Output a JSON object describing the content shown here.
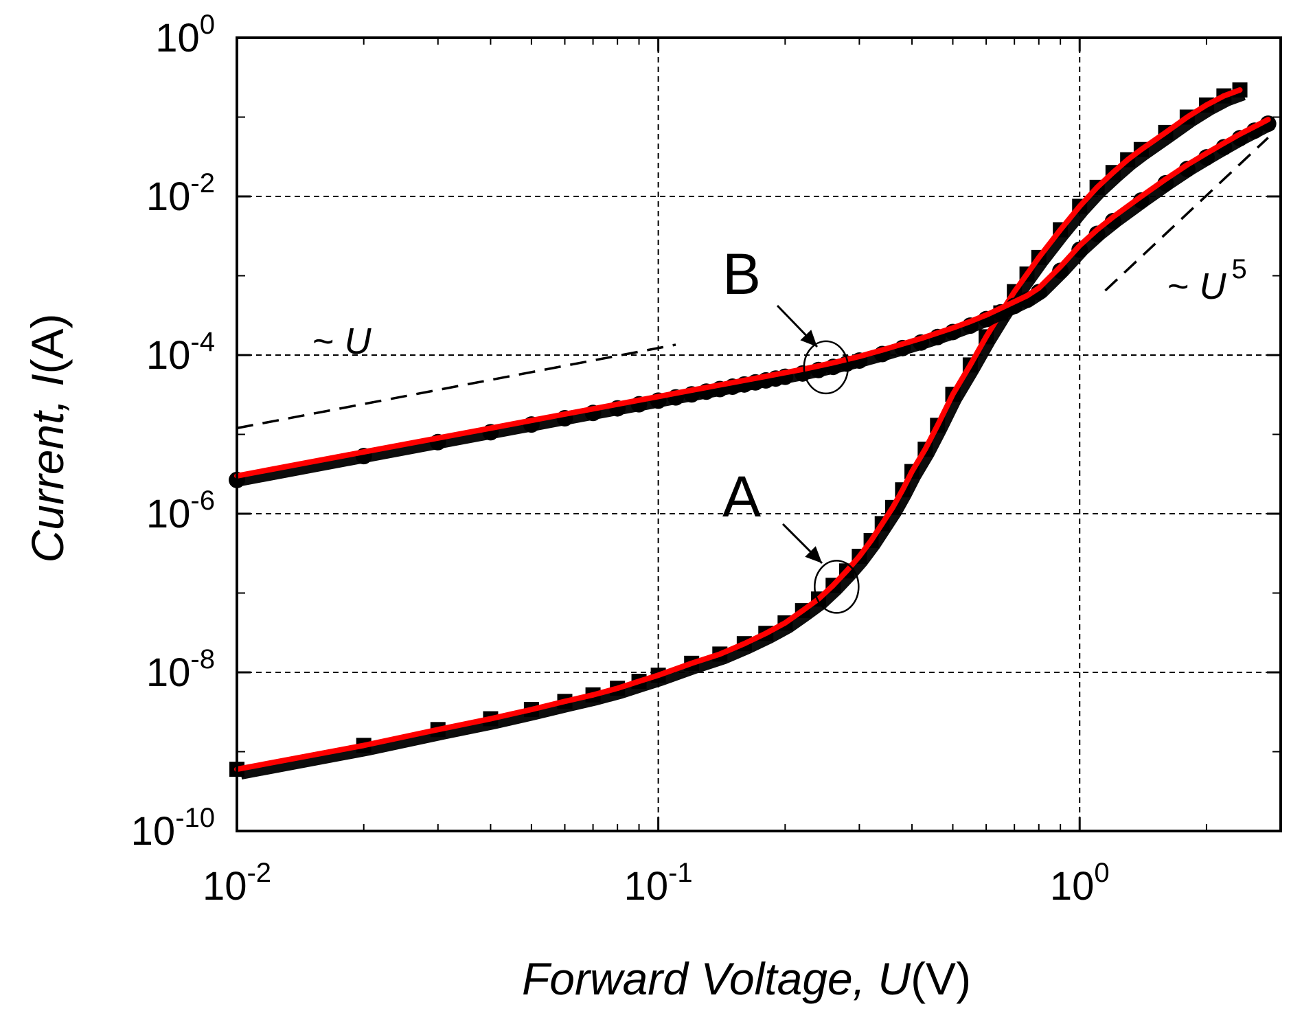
{
  "chart_data": {
    "type": "scatter",
    "title": "",
    "xlabel": {
      "prefix": "Forward Voltage, ",
      "var": "U",
      "unit": "(V)"
    },
    "ylabel": {
      "prefix": "Current, ",
      "var": "I",
      "unit": "(A)"
    },
    "xscale": "log",
    "yscale": "log",
    "xlim": [
      0.01,
      3
    ],
    "ylim": [
      1e-10,
      1
    ],
    "grid": true,
    "x_ticks": [
      {
        "value": 0.01,
        "base": "10",
        "exp": "-2"
      },
      {
        "value": 0.1,
        "base": "10",
        "exp": "-1"
      },
      {
        "value": 1,
        "base": "10",
        "exp": "0"
      }
    ],
    "y_ticks": [
      {
        "value": 1e-10,
        "base": "10",
        "exp": "-10"
      },
      {
        "value": 1e-08,
        "base": "10",
        "exp": "-8"
      },
      {
        "value": 1e-06,
        "base": "10",
        "exp": "-6"
      },
      {
        "value": 0.0001,
        "base": "10",
        "exp": "-4"
      },
      {
        "value": 0.01,
        "base": "10",
        "exp": "-2"
      },
      {
        "value": 1,
        "base": "10",
        "exp": "0"
      }
    ],
    "colors": {
      "fit": "#ff0000",
      "data": "#000000",
      "grid": "#000000"
    },
    "series": [
      {
        "name": "A",
        "marker": "square",
        "x": [
          0.01,
          0.02,
          0.03,
          0.04,
          0.05,
          0.06,
          0.07,
          0.08,
          0.09,
          0.1,
          0.12,
          0.14,
          0.16,
          0.18,
          0.2,
          0.22,
          0.24,
          0.26,
          0.28,
          0.3,
          0.32,
          0.34,
          0.36,
          0.38,
          0.4,
          0.43,
          0.46,
          0.5,
          0.55,
          0.6,
          0.65,
          0.7,
          0.75,
          0.8,
          0.9,
          1.0,
          1.1,
          1.2,
          1.3,
          1.4,
          1.6,
          1.8,
          2.0,
          2.2,
          2.4
        ],
        "y": [
          6e-10,
          1.2e-09,
          1.9e-09,
          2.6e-09,
          3.4e-09,
          4.3e-09,
          5.2e-09,
          6.3e-09,
          7.7e-09,
          9.2e-09,
          1.3e-08,
          1.7e-08,
          2.3e-08,
          3.1e-08,
          4.2e-08,
          6e-08,
          8.4e-08,
          1.25e-07,
          1.9e-07,
          2.9e-07,
          4.6e-07,
          7.5e-07,
          1.2e-06,
          2e-06,
          3.4e-06,
          6.5e-06,
          1.3e-05,
          3.2e-05,
          7.5e-05,
          0.00017,
          0.00034,
          0.00063,
          0.00105,
          0.0017,
          0.0038,
          0.0075,
          0.013,
          0.02,
          0.029,
          0.039,
          0.064,
          0.1,
          0.142,
          0.185,
          0.22
        ]
      },
      {
        "name": "B",
        "marker": "circle",
        "x": [
          0.01,
          0.02,
          0.03,
          0.04,
          0.05,
          0.06,
          0.07,
          0.08,
          0.09,
          0.1,
          0.11,
          0.12,
          0.13,
          0.14,
          0.15,
          0.16,
          0.17,
          0.18,
          0.19,
          0.2,
          0.22,
          0.24,
          0.26,
          0.28,
          0.3,
          0.34,
          0.38,
          0.42,
          0.46,
          0.5,
          0.55,
          0.6,
          0.65,
          0.7,
          0.75,
          0.8,
          0.9,
          1.0,
          1.1,
          1.2,
          1.4,
          1.6,
          1.8,
          2.0,
          2.2,
          2.4,
          2.6,
          2.8
        ],
        "y": [
          3e-06,
          6e-06,
          9e-06,
          1.2e-05,
          1.5e-05,
          1.8e-05,
          2.1e-05,
          2.4e-05,
          2.7e-05,
          3e-05,
          3.3e-05,
          3.6e-05,
          3.9e-05,
          4.2e-05,
          4.5e-05,
          4.8e-05,
          5.1e-05,
          5.4e-05,
          5.7e-05,
          6e-05,
          6.6e-05,
          7.3e-05,
          8e-05,
          8.8e-05,
          9.6e-05,
          0.000116,
          0.000138,
          0.000162,
          0.00019,
          0.00022,
          0.000265,
          0.00032,
          0.00039,
          0.00047,
          0.00056,
          0.0007,
          0.0013,
          0.0024,
          0.0038,
          0.0055,
          0.01,
          0.0165,
          0.025,
          0.035,
          0.047,
          0.061,
          0.076,
          0.093
        ]
      }
    ],
    "reference_lines": [
      {
        "label_prefix": "~ ",
        "label_var": "U",
        "label_exp": "",
        "x": [
          0.01,
          0.11
        ],
        "y": [
          1.2e-05,
          0.000135
        ]
      },
      {
        "label_prefix": "~ ",
        "label_var": "U",
        "label_exp": "5",
        "x": [
          1.15,
          2.8
        ],
        "y": [
          0.00065,
          0.055
        ]
      }
    ],
    "annotations": [
      {
        "text": "B",
        "target_x": 0.25,
        "target_y": 7e-05
      },
      {
        "text": "A",
        "target_x": 0.265,
        "target_y": 1.2e-07
      }
    ]
  }
}
